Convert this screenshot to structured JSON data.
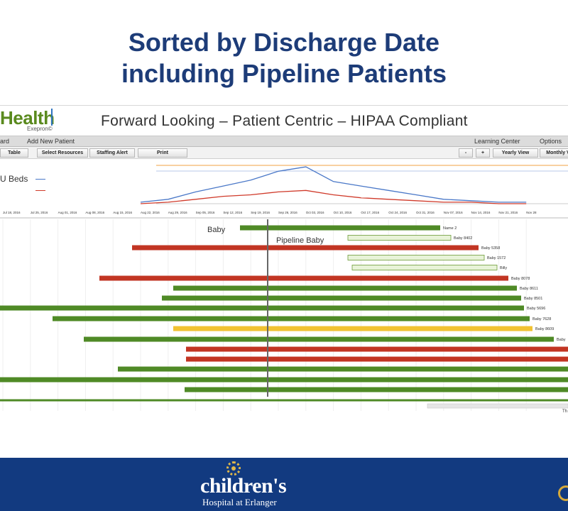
{
  "slide": {
    "title_line1": "Sorted by Discharge Date",
    "title_line2": "including Pipeline Patients"
  },
  "app": {
    "brand": "Health",
    "brand_sub": "Exepron©",
    "banner": "Forward Looking – Patient Centric – HIPAA Compliant",
    "menu": {
      "dashboard": "ard",
      "add_new_patient": "Add New Patient",
      "learning_center": "Learning Center",
      "options": "Options"
    },
    "toolbar": {
      "table": "Table",
      "select_resources": "Select Resources",
      "staffing_alert": "Staffing Alert",
      "print": "Print",
      "minus": "-",
      "plus": "+",
      "yearly_view": "Yearly View",
      "monthly_view": "Monthly V"
    },
    "legend_label": "U Beds"
  },
  "colors": {
    "accent_navy": "#1d3c78",
    "bar_green": "#4f8a26",
    "bar_red": "#c23523",
    "bar_yellow": "#f1c232",
    "bar_pipeline": "#e8f3d8",
    "line_blue": "#4a78c8",
    "line_red": "#d03a2a",
    "footer_blue": "#123a80"
  },
  "chart_data": {
    "type": "line",
    "x": [
      "Jul 18, 2016",
      "Jul 25, 2016",
      "Aug 01, 2016",
      "Aug 08, 2016",
      "Aug 15, 2016",
      "Aug 22, 2016",
      "Aug 29, 2016",
      "Sep 05, 2016",
      "Sep 12, 2016",
      "Sep 19, 2016",
      "Sep 26, 2016",
      "Oct 03, 2016",
      "Oct 10, 2016",
      "Oct 17, 2016",
      "Oct 24, 2016",
      "Oct 31, 2016",
      "Nov 07, 2016",
      "Nov 14, 2016",
      "Nov 21, 2016",
      "Nov 28"
    ],
    "series": [
      {
        "color": "#4a78c8",
        "values": [
          null,
          null,
          null,
          null,
          null,
          1,
          3,
          8,
          12,
          16,
          22,
          25,
          15,
          12,
          9,
          6,
          3,
          2,
          1,
          1
        ]
      },
      {
        "color": "#d03a2a",
        "values": [
          null,
          null,
          null,
          null,
          null,
          0,
          1,
          3,
          5,
          6,
          8,
          9,
          6,
          4,
          3,
          2,
          1,
          1,
          0,
          0
        ]
      }
    ],
    "grid": true
  },
  "gantt": {
    "labels": [
      "Name 2",
      "Baby 8402",
      "Baby 5358",
      "Baby 1572",
      "Billy",
      "Baby 8078",
      "Baby 8611",
      "Baby 8501",
      "Baby 5696",
      "Baby 7628",
      "Baby 8609",
      "Baby",
      "",
      "",
      "",
      "",
      ""
    ],
    "bars": [
      {
        "status": "green"
      },
      {
        "status": "pipeline"
      },
      {
        "status": "red"
      },
      {
        "status": "pipeline"
      },
      {
        "status": "pipeline"
      },
      {
        "status": "red"
      },
      {
        "status": "green"
      },
      {
        "status": "green"
      },
      {
        "status": "green"
      },
      {
        "status": "green"
      },
      {
        "status": "yellow"
      },
      {
        "status": "green"
      },
      {
        "status": "red"
      },
      {
        "status": "red"
      },
      {
        "status": "green"
      },
      {
        "status": "green"
      },
      {
        "status": "green"
      }
    ],
    "annotations": {
      "baby": "Baby",
      "pipeline_baby": "Pipeline Baby"
    },
    "scroll_label": "Th"
  },
  "footer": {
    "logo": "children's",
    "logo_sub": "Hospital at Erlanger"
  }
}
